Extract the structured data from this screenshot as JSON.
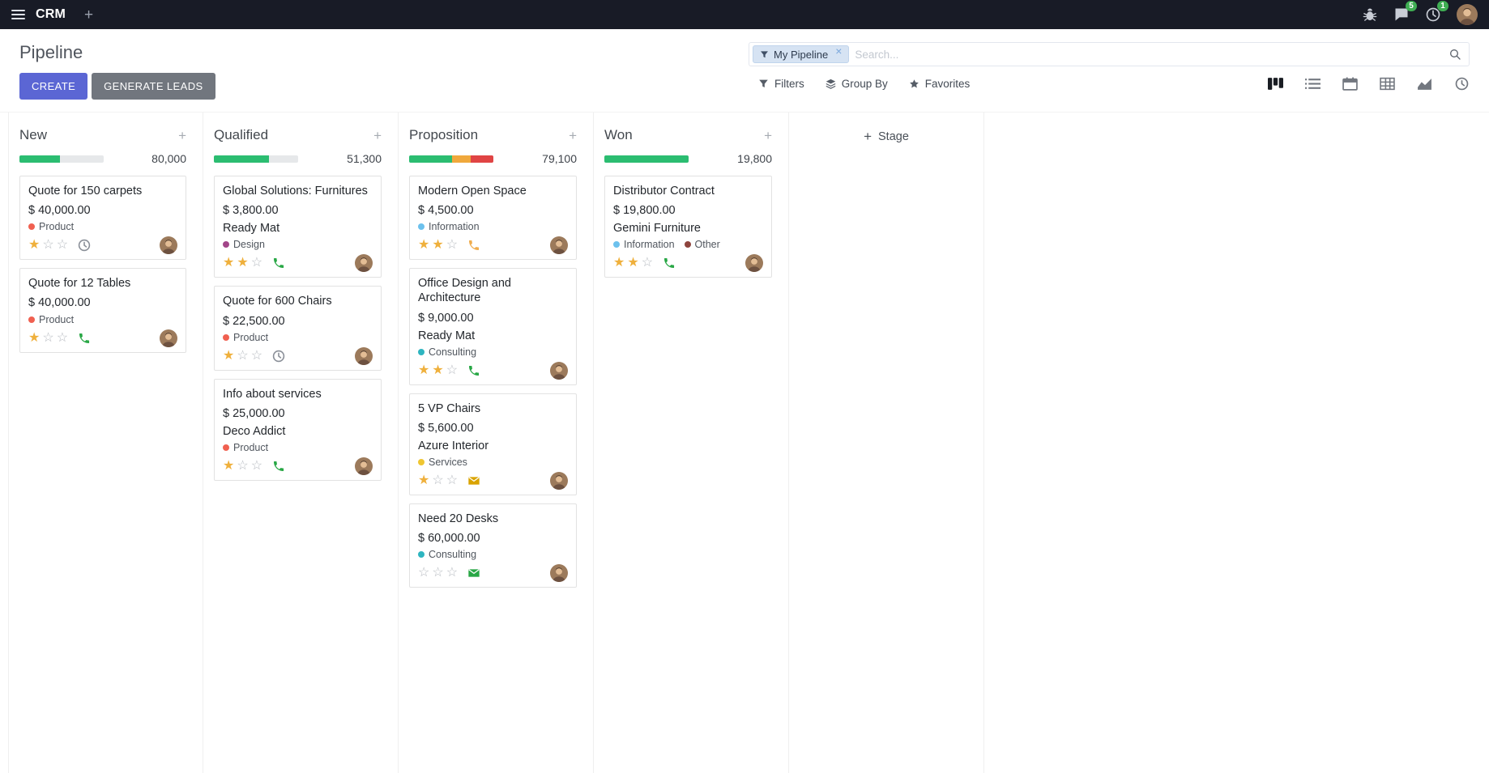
{
  "colors": {
    "topbar": "#181b26",
    "primary": "#5b66d4",
    "secondary": "#71767e",
    "success": "#2bbd71",
    "badge": "#3fae53"
  },
  "topbar": {
    "app_name": "CRM",
    "plus_label": "+",
    "icons": [
      "bug-icon",
      "messages-icon",
      "activities-icon",
      "user-avatar"
    ],
    "messages_badge": "5",
    "activities_badge": "1"
  },
  "control_panel": {
    "title": "Pipeline",
    "create_label": "CREATE",
    "generate_leads_label": "GENERATE LEADS",
    "filters_label": "Filters",
    "group_by_label": "Group By",
    "favorites_label": "Favorites",
    "search": {
      "facet_label": "My Pipeline",
      "facet_remove": "×",
      "placeholder": "Search..."
    },
    "view_switcher": {
      "views": [
        "kanban-view-icon",
        "list-view-icon",
        "calendar-view-icon",
        "pivot-view-icon",
        "graph-view-icon",
        "activity-view-icon"
      ],
      "active": "kanban"
    }
  },
  "kanban": {
    "add_stage_label": "Stage",
    "quick_add_label": "+",
    "columns": [
      {
        "name": "New",
        "total": "80,000",
        "progress": [
          {
            "color": "#2bbd71",
            "pct": 48
          }
        ],
        "cards": [
          {
            "title": "Quote for 150 carpets",
            "amount": "$ 40,000.00",
            "tags": [
              {
                "label": "Product",
                "color": "#f06050"
              }
            ],
            "priority": 1,
            "activity": {
              "icon": "clock",
              "color": "#8a8f98"
            }
          },
          {
            "title": "Quote for 12 Tables",
            "amount": "$ 40,000.00",
            "tags": [
              {
                "label": "Product",
                "color": "#f06050"
              }
            ],
            "priority": 1,
            "activity": {
              "icon": "phone",
              "color": "#28a745"
            }
          }
        ]
      },
      {
        "name": "Qualified",
        "total": "51,300",
        "progress": [
          {
            "color": "#2bbd71",
            "pct": 65
          }
        ],
        "cards": [
          {
            "title": "Global Solutions: Furnitures",
            "amount": "$ 3,800.00",
            "partner": "Ready Mat",
            "tags": [
              {
                "label": "Design",
                "color": "#a24689"
              }
            ],
            "priority": 2,
            "activity": {
              "icon": "phone",
              "color": "#28a745"
            }
          },
          {
            "title": "Quote for 600 Chairs",
            "amount": "$ 22,500.00",
            "tags": [
              {
                "label": "Product",
                "color": "#f06050"
              }
            ],
            "priority": 1,
            "activity": {
              "icon": "clock",
              "color": "#8a8f98"
            }
          },
          {
            "title": "Info about services",
            "amount": "$ 25,000.00",
            "partner": "Deco Addict",
            "tags": [
              {
                "label": "Product",
                "color": "#f06050"
              }
            ],
            "priority": 1,
            "activity": {
              "icon": "phone",
              "color": "#28a745"
            }
          }
        ]
      },
      {
        "name": "Proposition",
        "total": "79,100",
        "progress": [
          {
            "color": "#2bbd71",
            "pct": 51
          },
          {
            "color": "#f0a83c",
            "pct": 22
          },
          {
            "color": "#e04444",
            "pct": 27
          }
        ],
        "cards": [
          {
            "title": "Modern Open Space",
            "amount": "$ 4,500.00",
            "tags": [
              {
                "label": "Information",
                "color": "#6cc1ed"
              }
            ],
            "priority": 2,
            "activity": {
              "icon": "phone",
              "color": "#f0ad4e"
            }
          },
          {
            "title": "Office Design and Architecture",
            "amount": "$ 9,000.00",
            "partner": "Ready Mat",
            "tags": [
              {
                "label": "Consulting",
                "color": "#2eb5c0"
              }
            ],
            "priority": 2,
            "activity": {
              "icon": "phone",
              "color": "#28a745"
            }
          },
          {
            "title": "5 VP Chairs",
            "amount": "$ 5,600.00",
            "partner": "Azure Interior",
            "tags": [
              {
                "label": "Services",
                "color": "#efc631"
              }
            ],
            "priority": 1,
            "activity": {
              "icon": "envelope",
              "color": "#d9a300"
            }
          },
          {
            "title": "Need 20 Desks",
            "amount": "$ 60,000.00",
            "tags": [
              {
                "label": "Consulting",
                "color": "#2eb5c0"
              }
            ],
            "priority": 0,
            "activity": {
              "icon": "envelope",
              "color": "#28a745"
            }
          }
        ]
      },
      {
        "name": "Won",
        "total": "19,800",
        "progress": [
          {
            "color": "#2bbd71",
            "pct": 100
          }
        ],
        "cards": [
          {
            "title": "Distributor Contract",
            "amount": "$ 19,800.00",
            "partner": "Gemini Furniture",
            "tags": [
              {
                "label": "Information",
                "color": "#6cc1ed"
              },
              {
                "label": "Other",
                "color": "#8e443d"
              }
            ],
            "priority": 2,
            "activity": {
              "icon": "phone",
              "color": "#28a745"
            }
          }
        ]
      }
    ]
  }
}
